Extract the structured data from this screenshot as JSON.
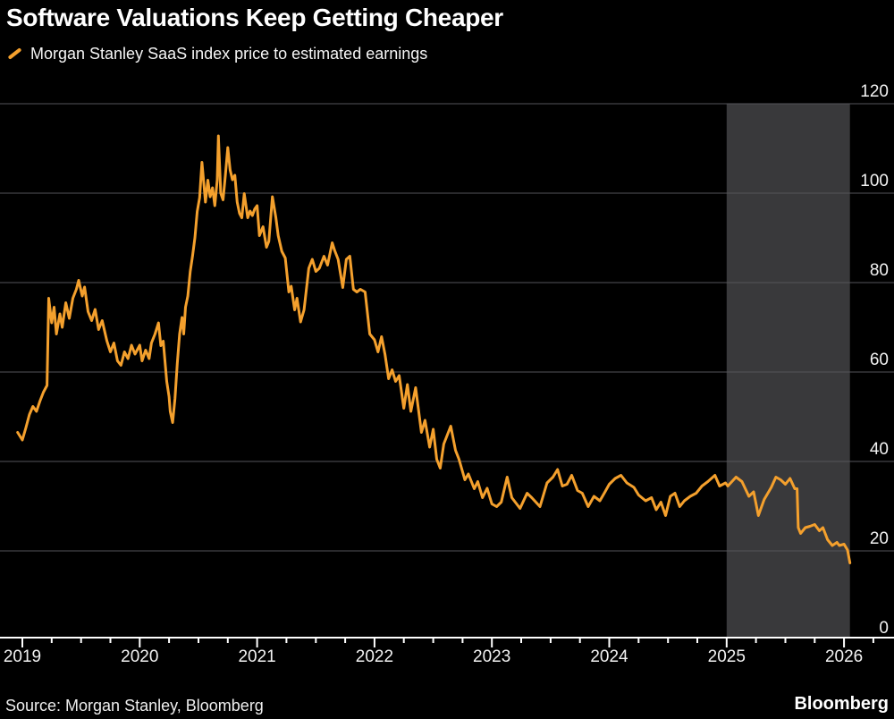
{
  "header": {
    "title": "Software Valuations Keep Getting Cheaper"
  },
  "legend": {
    "marker": "slash-icon",
    "label": "Morgan Stanley SaaS index price to estimated earnings"
  },
  "footer": {
    "source": "Source: Morgan Stanley, Bloomberg",
    "brand": "Bloomberg"
  },
  "colors": {
    "background": "#000000",
    "line": "#F4A02D",
    "shaded_band": "#39393B",
    "grid": "#55555A",
    "axis": "#FFFFFF",
    "text": "#F2F2F2"
  },
  "chart_data": {
    "type": "line",
    "title": "Software Valuations Keep Getting Cheaper",
    "xlabel": "",
    "ylabel": "",
    "legend_position": "top-left",
    "grid": "horizontal",
    "y_axis_side": "right",
    "ylim": [
      0,
      120
    ],
    "xlim": [
      2018.81,
      2026.42
    ],
    "y_ticks": [
      120,
      100,
      80,
      60,
      40,
      20,
      0
    ],
    "x_ticks": [
      2019,
      2020,
      2021,
      2022,
      2023,
      2024,
      2025,
      2026
    ],
    "minor_x_tick_interval": 0.25,
    "shaded_region": {
      "from": 2025.0,
      "to": 2026.05
    },
    "series": [
      {
        "name": "Morgan Stanley SaaS index price to estimated earnings",
        "points": [
          [
            2018.96,
            46.5
          ],
          [
            2019.0,
            44.8
          ],
          [
            2019.03,
            47.5
          ],
          [
            2019.06,
            50.5
          ],
          [
            2019.09,
            52.3
          ],
          [
            2019.12,
            51.2
          ],
          [
            2019.15,
            53.5
          ],
          [
            2019.18,
            55.5
          ],
          [
            2019.21,
            57.0
          ],
          [
            2019.225,
            76.5
          ],
          [
            2019.25,
            71.0
          ],
          [
            2019.27,
            74.5
          ],
          [
            2019.29,
            68.5
          ],
          [
            2019.32,
            73.0
          ],
          [
            2019.34,
            70.0
          ],
          [
            2019.37,
            75.5
          ],
          [
            2019.4,
            72.0
          ],
          [
            2019.43,
            76.5
          ],
          [
            2019.46,
            78.5
          ],
          [
            2019.48,
            80.5
          ],
          [
            2019.51,
            77.0
          ],
          [
            2019.53,
            79.0
          ],
          [
            2019.56,
            73.5
          ],
          [
            2019.59,
            71.5
          ],
          [
            2019.62,
            74.0
          ],
          [
            2019.65,
            69.5
          ],
          [
            2019.68,
            71.5
          ],
          [
            2019.72,
            67.0
          ],
          [
            2019.75,
            64.5
          ],
          [
            2019.78,
            66.5
          ],
          [
            2019.81,
            62.5
          ],
          [
            2019.84,
            61.5
          ],
          [
            2019.87,
            64.5
          ],
          [
            2019.9,
            63.0
          ],
          [
            2019.93,
            66.0
          ],
          [
            2019.96,
            64.0
          ],
          [
            2020.0,
            66.0
          ],
          [
            2020.02,
            62.5
          ],
          [
            2020.05,
            64.9
          ],
          [
            2020.08,
            63.0
          ],
          [
            2020.1,
            66.5
          ],
          [
            2020.13,
            68.5
          ],
          [
            2020.16,
            71.0
          ],
          [
            2020.18,
            65.9
          ],
          [
            2020.2,
            66.9
          ],
          [
            2020.23,
            57.9
          ],
          [
            2020.25,
            54.5
          ],
          [
            2020.26,
            51.2
          ],
          [
            2020.28,
            48.7
          ],
          [
            2020.3,
            54.0
          ],
          [
            2020.32,
            61.9
          ],
          [
            2020.34,
            68.5
          ],
          [
            2020.36,
            72.2
          ],
          [
            2020.375,
            68.5
          ],
          [
            2020.39,
            74.5
          ],
          [
            2020.41,
            77.0
          ],
          [
            2020.43,
            82.5
          ],
          [
            2020.45,
            86.0
          ],
          [
            2020.47,
            90.0
          ],
          [
            2020.49,
            95.9
          ],
          [
            2020.51,
            99.0
          ],
          [
            2020.52,
            103.0
          ],
          [
            2020.53,
            106.9
          ],
          [
            2020.55,
            101.0
          ],
          [
            2020.56,
            98.0
          ],
          [
            2020.58,
            102.9
          ],
          [
            2020.6,
            99.2
          ],
          [
            2020.62,
            101.2
          ],
          [
            2020.64,
            97.2
          ],
          [
            2020.66,
            103.0
          ],
          [
            2020.67,
            112.8
          ],
          [
            2020.69,
            100.0
          ],
          [
            2020.71,
            98.5
          ],
          [
            2020.73,
            104.0
          ],
          [
            2020.75,
            110.2
          ],
          [
            2020.77,
            105.2
          ],
          [
            2020.79,
            103.0
          ],
          [
            2020.81,
            104.0
          ],
          [
            2020.83,
            98.0
          ],
          [
            2020.85,
            95.5
          ],
          [
            2020.87,
            94.5
          ],
          [
            2020.89,
            99.9
          ],
          [
            2020.92,
            94.5
          ],
          [
            2020.94,
            96.0
          ],
          [
            2020.96,
            95.0
          ],
          [
            2020.98,
            96.5
          ],
          [
            2021.0,
            97.2
          ],
          [
            2021.02,
            90.5
          ],
          [
            2021.05,
            92.5
          ],
          [
            2021.08,
            87.9
          ],
          [
            2021.1,
            89.2
          ],
          [
            2021.13,
            99.2
          ],
          [
            2021.16,
            94.5
          ],
          [
            2021.18,
            90.5
          ],
          [
            2021.21,
            87.0
          ],
          [
            2021.24,
            85.5
          ],
          [
            2021.27,
            77.9
          ],
          [
            2021.29,
            79.2
          ],
          [
            2021.32,
            73.9
          ],
          [
            2021.34,
            76.5
          ],
          [
            2021.37,
            71.2
          ],
          [
            2021.4,
            73.9
          ],
          [
            2021.44,
            83.2
          ],
          [
            2021.47,
            85.2
          ],
          [
            2021.5,
            82.5
          ],
          [
            2021.53,
            83.2
          ],
          [
            2021.57,
            85.9
          ],
          [
            2021.6,
            83.9
          ],
          [
            2021.64,
            88.9
          ],
          [
            2021.66,
            87.2
          ],
          [
            2021.69,
            85.2
          ],
          [
            2021.73,
            78.9
          ],
          [
            2021.76,
            85.2
          ],
          [
            2021.79,
            85.9
          ],
          [
            2021.82,
            78.5
          ],
          [
            2021.85,
            77.9
          ],
          [
            2021.88,
            78.5
          ],
          [
            2021.92,
            77.9
          ],
          [
            2021.96,
            68.5
          ],
          [
            2022.0,
            67.2
          ],
          [
            2022.03,
            64.5
          ],
          [
            2022.06,
            67.9
          ],
          [
            2022.09,
            63.9
          ],
          [
            2022.12,
            58.5
          ],
          [
            2022.15,
            60.5
          ],
          [
            2022.18,
            57.9
          ],
          [
            2022.21,
            59.2
          ],
          [
            2022.25,
            51.9
          ],
          [
            2022.28,
            57.2
          ],
          [
            2022.31,
            51.2
          ],
          [
            2022.35,
            56.5
          ],
          [
            2022.4,
            46.5
          ],
          [
            2022.43,
            49.2
          ],
          [
            2022.47,
            43.2
          ],
          [
            2022.5,
            47.2
          ],
          [
            2022.53,
            40.5
          ],
          [
            2022.56,
            38.5
          ],
          [
            2022.59,
            43.9
          ],
          [
            2022.62,
            45.9
          ],
          [
            2022.65,
            47.9
          ],
          [
            2022.69,
            42.5
          ],
          [
            2022.72,
            40.5
          ],
          [
            2022.77,
            35.9
          ],
          [
            2022.8,
            37.2
          ],
          [
            2022.85,
            33.9
          ],
          [
            2022.88,
            35.5
          ],
          [
            2022.92,
            31.9
          ],
          [
            2022.96,
            34.0
          ],
          [
            2023.0,
            30.5
          ],
          [
            2023.04,
            29.9
          ],
          [
            2023.08,
            30.9
          ],
          [
            2023.13,
            36.5
          ],
          [
            2023.17,
            31.9
          ],
          [
            2023.24,
            29.5
          ],
          [
            2023.3,
            32.9
          ],
          [
            2023.34,
            31.9
          ],
          [
            2023.41,
            29.9
          ],
          [
            2023.47,
            35.2
          ],
          [
            2023.52,
            36.5
          ],
          [
            2023.56,
            38.2
          ],
          [
            2023.6,
            34.5
          ],
          [
            2023.64,
            34.9
          ],
          [
            2023.68,
            36.9
          ],
          [
            2023.73,
            33.5
          ],
          [
            2023.77,
            32.9
          ],
          [
            2023.82,
            29.9
          ],
          [
            2023.87,
            32.2
          ],
          [
            2023.92,
            31.2
          ],
          [
            2023.96,
            33.0
          ],
          [
            2024.0,
            34.9
          ],
          [
            2024.05,
            36.2
          ],
          [
            2024.1,
            36.9
          ],
          [
            2024.15,
            35.2
          ],
          [
            2024.21,
            34.2
          ],
          [
            2024.25,
            32.5
          ],
          [
            2024.31,
            31.2
          ],
          [
            2024.36,
            31.9
          ],
          [
            2024.4,
            29.2
          ],
          [
            2024.44,
            30.9
          ],
          [
            2024.48,
            27.9
          ],
          [
            2024.52,
            32.2
          ],
          [
            2024.56,
            32.9
          ],
          [
            2024.6,
            29.9
          ],
          [
            2024.64,
            31.2
          ],
          [
            2024.69,
            32.2
          ],
          [
            2024.74,
            32.9
          ],
          [
            2024.79,
            34.5
          ],
          [
            2024.84,
            35.5
          ],
          [
            2024.9,
            36.9
          ],
          [
            2024.94,
            34.5
          ],
          [
            2024.99,
            35.2
          ],
          [
            2025.01,
            34.5
          ],
          [
            2025.08,
            36.5
          ],
          [
            2025.13,
            35.5
          ],
          [
            2025.19,
            32.2
          ],
          [
            2025.23,
            33.2
          ],
          [
            2025.27,
            27.9
          ],
          [
            2025.32,
            31.5
          ],
          [
            2025.38,
            34.2
          ],
          [
            2025.42,
            36.5
          ],
          [
            2025.46,
            35.9
          ],
          [
            2025.5,
            34.9
          ],
          [
            2025.54,
            36.2
          ],
          [
            2025.58,
            33.9
          ],
          [
            2025.6,
            33.9
          ],
          [
            2025.61,
            25.2
          ],
          [
            2025.63,
            23.9
          ],
          [
            2025.67,
            25.2
          ],
          [
            2025.71,
            25.5
          ],
          [
            2025.75,
            25.9
          ],
          [
            2025.79,
            24.5
          ],
          [
            2025.82,
            25.2
          ],
          [
            2025.86,
            22.5
          ],
          [
            2025.9,
            21.2
          ],
          [
            2025.94,
            21.9
          ],
          [
            2025.96,
            21.2
          ],
          [
            2026.0,
            21.5
          ],
          [
            2026.03,
            20.2
          ],
          [
            2026.05,
            17.3
          ]
        ]
      }
    ]
  }
}
